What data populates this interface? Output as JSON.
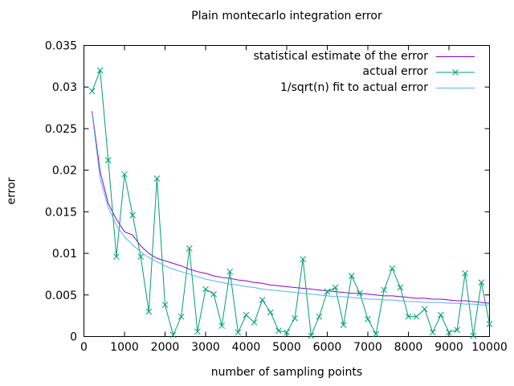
{
  "chart_data": {
    "type": "line",
    "title": "Plain montecarlo integration error",
    "xlabel": "number of sampling points",
    "ylabel": "error",
    "xlim": [
      0,
      10000
    ],
    "ylim": [
      0,
      0.035
    ],
    "x_ticks": [
      0,
      1000,
      2000,
      3000,
      4000,
      5000,
      6000,
      7000,
      8000,
      9000,
      10000
    ],
    "x_tick_labels": [
      "0",
      "1000",
      "2000",
      "3000",
      "4000",
      "5000",
      "6000",
      "7000",
      "8000",
      "9000",
      "10000"
    ],
    "y_ticks": [
      0,
      0.005,
      0.01,
      0.015,
      0.02,
      0.025,
      0.03,
      0.035
    ],
    "y_tick_labels": [
      "0",
      "0.005",
      "0.01",
      "0.015",
      "0.02",
      "0.025",
      "0.03",
      "0.035"
    ],
    "grid": false,
    "legend_position": "top-right-inside",
    "x": [
      200,
      400,
      600,
      800,
      1000,
      1200,
      1400,
      1600,
      1800,
      2000,
      2200,
      2400,
      2600,
      2800,
      3000,
      3200,
      3400,
      3600,
      3800,
      4000,
      4200,
      4400,
      4600,
      4800,
      5000,
      5200,
      5400,
      5600,
      5800,
      6000,
      6200,
      6400,
      6600,
      6800,
      7000,
      7200,
      7400,
      7600,
      7800,
      8000,
      8200,
      8400,
      8600,
      8800,
      9000,
      9200,
      9400,
      9600,
      9800,
      10000
    ],
    "series": [
      {
        "name": "statistical estimate of the error",
        "color": "#9400d3",
        "marker": "none",
        "values": [
          0.0271,
          0.0198,
          0.016,
          0.0141,
          0.0126,
          0.0122,
          0.0109,
          0.01,
          0.0094,
          0.0091,
          0.0088,
          0.0085,
          0.0081,
          0.0078,
          0.0076,
          0.0073,
          0.0071,
          0.007,
          0.0068,
          0.0067,
          0.0065,
          0.0064,
          0.0062,
          0.0061,
          0.006,
          0.0059,
          0.0058,
          0.0057,
          0.0056,
          0.0055,
          0.0054,
          0.0053,
          0.0052,
          0.0052,
          0.0051,
          0.005,
          0.0049,
          0.0049,
          0.0048,
          0.0047,
          0.0046,
          0.0046,
          0.0045,
          0.0045,
          0.0044,
          0.0043,
          0.0043,
          0.0042,
          0.0041,
          0.004
        ]
      },
      {
        "name": "actual error",
        "color": "#009e73",
        "marker": "x",
        "values": [
          0.0295,
          0.032,
          0.0212,
          0.0096,
          0.0195,
          0.0146,
          0.0096,
          0.003,
          0.019,
          0.0038,
          0.0002,
          0.0024,
          0.0106,
          0.0006,
          0.0057,
          0.0051,
          0.0013,
          0.0078,
          0.0005,
          0.0026,
          0.0017,
          0.0044,
          0.0029,
          0.0007,
          0.0005,
          0.0022,
          0.0093,
          0.0001,
          0.0024,
          0.0054,
          0.0059,
          0.0014,
          0.0073,
          0.0052,
          0.0021,
          0.0003,
          0.0056,
          0.0082,
          0.0059,
          0.0024,
          0.0024,
          0.0033,
          0.0005,
          0.0026,
          0.0005,
          0.0008,
          0.0076,
          0.0001,
          0.0065,
          0.0015
        ]
      },
      {
        "name": "1/sqrt(n) fit to actual error",
        "color": "#56b4e9",
        "marker": "none",
        "values": [
          0.0269,
          0.019,
          0.0155,
          0.0134,
          0.012,
          0.011,
          0.0102,
          0.0095,
          0.009,
          0.0085,
          0.0081,
          0.0078,
          0.0075,
          0.0072,
          0.0069,
          0.0067,
          0.0065,
          0.0063,
          0.0062,
          0.006,
          0.0059,
          0.0057,
          0.0056,
          0.0055,
          0.0054,
          0.0053,
          0.0052,
          0.0051,
          0.005,
          0.0049,
          0.0048,
          0.0048,
          0.0047,
          0.0046,
          0.0045,
          0.0045,
          0.0044,
          0.0044,
          0.0043,
          0.0042,
          0.0042,
          0.0041,
          0.0041,
          0.0041,
          0.004,
          0.004,
          0.0039,
          0.0039,
          0.0038,
          0.0038
        ]
      }
    ]
  }
}
